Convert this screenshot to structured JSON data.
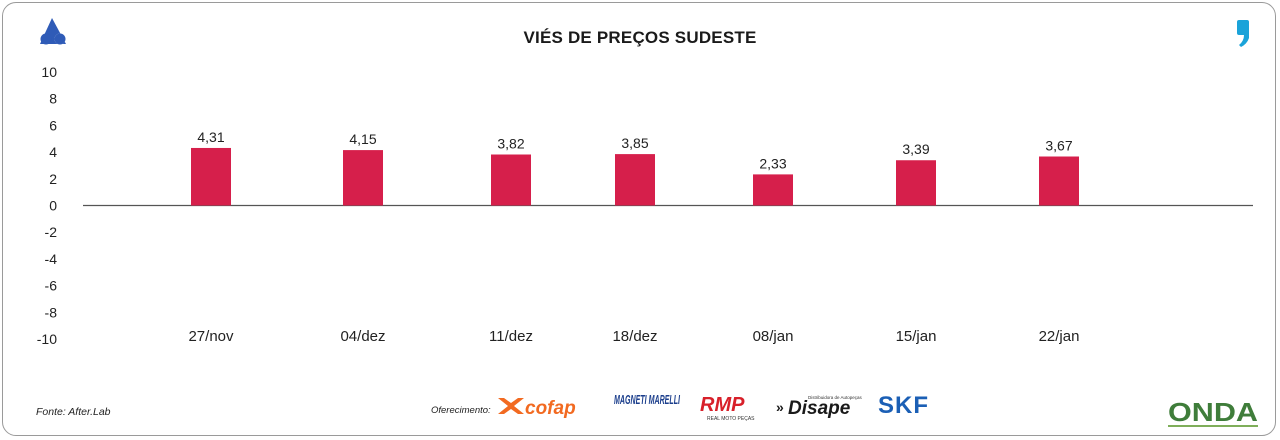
{
  "chart_data": {
    "type": "bar",
    "title": "VIÉS DE PREÇOS SUDESTE",
    "categories": [
      "27/nov",
      "04/dez",
      "11/dez",
      "18/dez",
      "08/jan",
      "15/jan",
      "22/jan"
    ],
    "values": [
      4.31,
      4.15,
      3.82,
      3.85,
      2.33,
      3.39,
      3.67
    ],
    "value_labels": [
      "4,31",
      "4,15",
      "3,82",
      "3,85",
      "2,33",
      "3,39",
      "3,67"
    ],
    "bar_color": "#d61f4b",
    "ylim": [
      -10,
      10
    ],
    "yticks": [
      10,
      8,
      6,
      4,
      2,
      0,
      -2,
      -4,
      -6,
      -8,
      -10
    ],
    "ytick_labels": [
      "10",
      "8",
      "6",
      "4",
      "2",
      "0",
      "-2",
      "-4",
      "-6",
      "-8",
      "-10"
    ],
    "grid": false,
    "legend": "none"
  },
  "footer": {
    "source": "Fonte: After.Lab",
    "sponsor_label": "Oferecimento:",
    "sponsors": [
      "cofap",
      "MAGNETI MARELLI",
      "RMP",
      "Disape",
      "SKF"
    ],
    "rmp_sub": "REAL MOTO PEÇAS",
    "disape_sub": "Distribuidora de Autopeças",
    "brand_mark": "ONDA"
  },
  "colors": {
    "brand_blue": "#2f5bb7",
    "accent_cyan": "#1aa3d9",
    "cofap_orange": "#f26a21",
    "magneti_blue": "#1b3e8c",
    "rmp_red": "#d8202a",
    "skf_blue": "#1b5fb5",
    "onda_green": "#3f7d3a"
  }
}
